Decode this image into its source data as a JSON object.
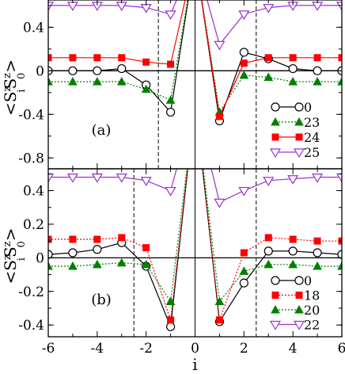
{
  "chart_data": [
    {
      "type": "line",
      "panel_label": "(a)",
      "ylabel": "<S^z_i S^z_0>",
      "ylabel_parts": [
        "<S",
        "z",
        "i",
        "S",
        "z",
        "0",
        ">"
      ],
      "xlim": [
        -6,
        6
      ],
      "ylim": [
        -0.9,
        0.65
      ],
      "y_ticks": [
        0.4,
        0.0,
        -0.4,
        -0.8
      ],
      "y_tick_labels": [
        "0.4",
        "0",
        "-0.4",
        "-0.8"
      ],
      "x_tick_labels_shown": false,
      "dashed_vlines": [
        -1.5,
        2.5
      ],
      "zero_line": true,
      "legend_position": "bottom-right",
      "series": [
        {
          "name": "0",
          "color": "#000000",
          "marker": "circle-open",
          "line": "solid",
          "x": [
            -6,
            -5,
            -4,
            -3,
            -2,
            -1,
            1,
            2,
            3,
            4,
            5,
            6
          ],
          "y": [
            0.0,
            0.0,
            0.0,
            0.02,
            -0.13,
            -0.38,
            -0.46,
            0.17,
            0.11,
            0.02,
            0.0,
            0.0
          ]
        },
        {
          "name": "23",
          "color": "#008000",
          "marker": "triangle-up-filled",
          "line": "dotted",
          "x": [
            -6,
            -5,
            -4,
            -3,
            -2,
            -1,
            1,
            2,
            3,
            4,
            5,
            6
          ],
          "y": [
            -0.1,
            -0.1,
            -0.1,
            -0.1,
            -0.17,
            -0.27,
            -0.38,
            -0.04,
            -0.06,
            -0.1,
            -0.1,
            -0.1
          ]
        },
        {
          "name": "24",
          "color": "#ff0000",
          "marker": "square-filled",
          "line": "solid",
          "x": [
            -6,
            -5,
            -4,
            -3,
            -2,
            -1,
            1,
            2,
            3,
            4,
            5,
            6
          ],
          "y": [
            0.12,
            0.12,
            0.12,
            0.12,
            0.08,
            0.06,
            -0.42,
            0.07,
            0.12,
            0.12,
            0.12,
            0.12
          ]
        },
        {
          "name": "25",
          "color": "#9933cc",
          "marker": "triangle-down-open",
          "line": "solid",
          "x": [
            -6,
            -5,
            -4,
            -3,
            -2,
            -1,
            1,
            2,
            3,
            4,
            5,
            6
          ],
          "y": [
            0.6,
            0.6,
            0.6,
            0.6,
            0.58,
            0.52,
            0.24,
            0.52,
            0.58,
            0.6,
            0.6,
            0.6
          ]
        }
      ]
    },
    {
      "type": "line",
      "panel_label": "(b)",
      "xlabel": "i",
      "ylabel": "<S^z_i S^z_0>",
      "ylabel_parts": [
        "<S",
        "z",
        "i",
        "S",
        "z",
        "0",
        ">"
      ],
      "xlim": [
        -6,
        6
      ],
      "ylim": [
        -0.47,
        0.53
      ],
      "x_ticks": [
        -6,
        -4,
        -2,
        0,
        2,
        4,
        6
      ],
      "x_tick_labels": [
        "-6",
        "-4",
        "-2",
        "0",
        "2",
        "4",
        "6"
      ],
      "y_ticks": [
        0.4,
        0.2,
        0.0,
        -0.2,
        -0.4
      ],
      "y_tick_labels": [
        "0.4",
        "0.2",
        "0",
        "-0.2",
        "-0.4"
      ],
      "dashed_vlines": [
        -2.5,
        2.5
      ],
      "zero_line": true,
      "legend_position": "bottom-right",
      "series": [
        {
          "name": "0",
          "color": "#000000",
          "marker": "circle-open",
          "line": "solid",
          "x": [
            -6,
            -5,
            -4,
            -3,
            -2,
            -1,
            1,
            2,
            3,
            4,
            5,
            6
          ],
          "y": [
            0.02,
            0.03,
            0.05,
            0.09,
            -0.05,
            -0.41,
            -0.38,
            -0.15,
            0.04,
            0.04,
            0.03,
            0.02
          ]
        },
        {
          "name": "18",
          "color": "#ff0000",
          "marker": "square-filled",
          "line": "dotted",
          "x": [
            -6,
            -5,
            -4,
            -3,
            -2,
            -1,
            1,
            2,
            3,
            4,
            5,
            6
          ],
          "y": [
            0.11,
            0.11,
            0.11,
            0.12,
            0.06,
            -0.37,
            -0.37,
            0.03,
            0.12,
            0.11,
            0.1,
            0.1
          ]
        },
        {
          "name": "20",
          "color": "#008000",
          "marker": "triangle-up-filled",
          "line": "dotted",
          "x": [
            -6,
            -5,
            -4,
            -3,
            -2,
            -1,
            1,
            2,
            3,
            4,
            5,
            6
          ],
          "y": [
            -0.05,
            -0.05,
            -0.04,
            -0.03,
            -0.04,
            -0.26,
            -0.26,
            -0.08,
            -0.04,
            -0.04,
            -0.05,
            -0.05
          ]
        },
        {
          "name": "22",
          "color": "#9933cc",
          "marker": "triangle-down-open",
          "line": "solid",
          "x": [
            -6,
            -5,
            -4,
            -3,
            -2,
            -1,
            1,
            2,
            3,
            4,
            5,
            6
          ],
          "y": [
            0.48,
            0.48,
            0.48,
            0.48,
            0.46,
            0.4,
            0.33,
            0.4,
            0.46,
            0.47,
            0.48,
            0.48
          ]
        }
      ]
    }
  ]
}
